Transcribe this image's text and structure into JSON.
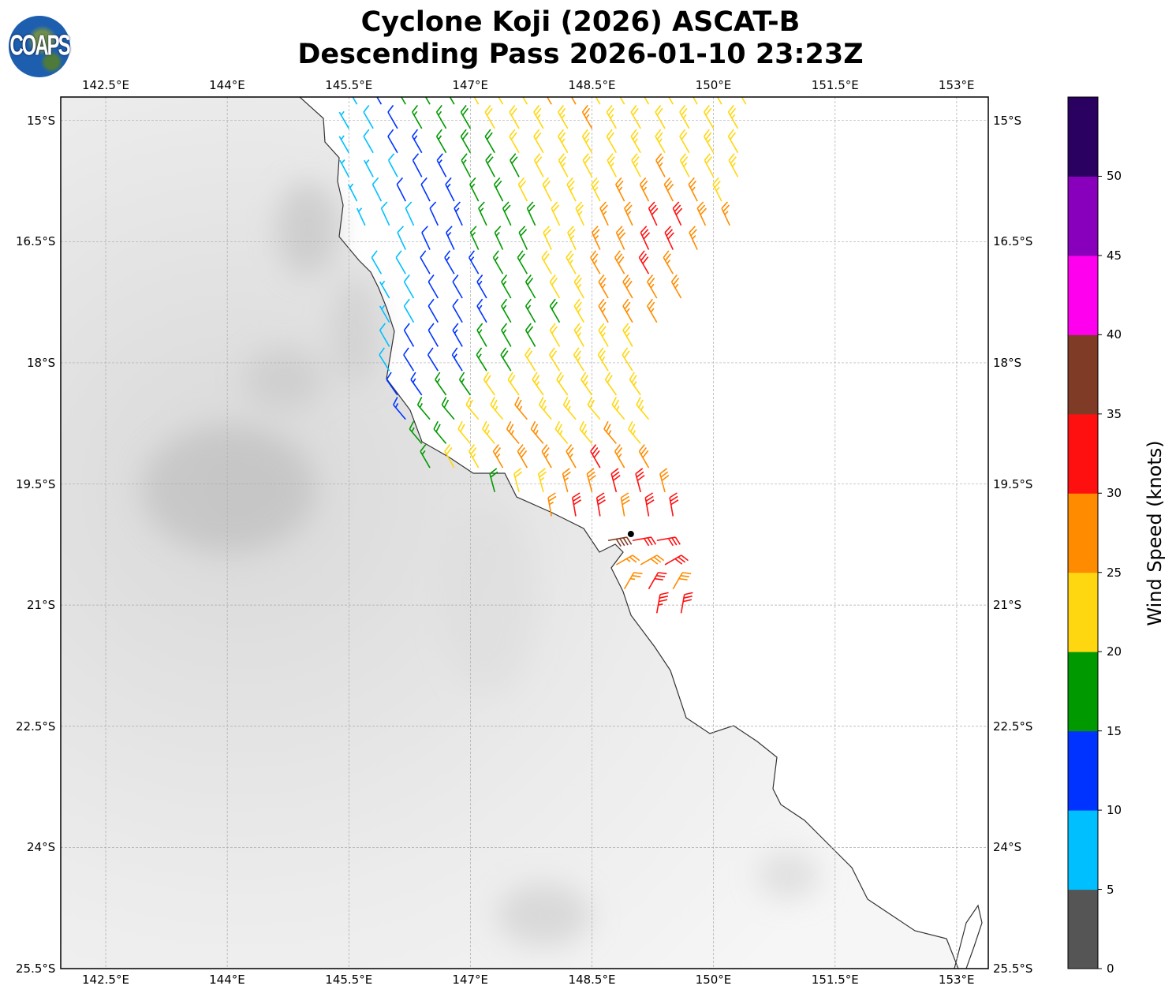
{
  "title_line1": "Cyclone Koji (2026) ASCAT-B",
  "title_line2": "Descending Pass 2026-01-10 23:23Z",
  "logo_text": "COAPS",
  "chart_data": {
    "type": "wind-barb-map",
    "lon_range": [
      141.945,
      153.39
    ],
    "lat_range_south": [
      14.71,
      25.5
    ],
    "lon_ticks": [
      142.5,
      144,
      145.5,
      147,
      148.5,
      150,
      151.5,
      153
    ],
    "lon_tick_labels": [
      "142.5°E",
      "144°E",
      "145.5°E",
      "147°E",
      "148.5°E",
      "150°E",
      "151.5°E",
      "153°E"
    ],
    "lat_ticks": [
      15,
      16.5,
      18,
      19.5,
      21,
      22.5,
      24,
      25.5
    ],
    "lat_tick_labels": [
      "15°S",
      "16.5°S",
      "18°S",
      "19.5°S",
      "21°S",
      "22.5°S",
      "24°S",
      "25.5°S"
    ],
    "grid": true,
    "storm_center": {
      "lon": 148.98,
      "lat_south": 20.12
    },
    "barb_spacing_deg": 0.3,
    "barb_rows": [
      {
        "lat": 14.8,
        "lon0": 145.6,
        "dir": 330,
        "speeds": [
          8,
          12,
          16,
          17,
          18,
          21,
          22,
          23,
          26,
          27,
          22,
          22,
          23,
          22,
          22,
          23,
          22
        ]
      },
      {
        "lat": 15.1,
        "lon0": 145.5,
        "dir": 330,
        "speeds": [
          7,
          9,
          12,
          16,
          17,
          18,
          21,
          22,
          23,
          24,
          26,
          23,
          22,
          22,
          23,
          22,
          23
        ]
      },
      {
        "lat": 15.4,
        "lon0": 145.5,
        "dir": 330,
        "speeds": [
          6,
          8,
          11,
          13,
          17,
          18,
          18,
          21,
          22,
          23,
          24,
          22,
          23,
          24,
          22,
          23,
          22
        ]
      },
      {
        "lat": 15.7,
        "lon0": 145.5,
        "dir": 332,
        "speeds": [
          6,
          7,
          9,
          12,
          14,
          17,
          18,
          19,
          22,
          23,
          22,
          23,
          24,
          26,
          23,
          22,
          24
        ]
      },
      {
        "lat": 16.0,
        "lon0": 145.6,
        "dir": 333,
        "speeds": [
          6,
          8,
          10,
          12,
          14,
          17,
          18,
          21,
          22,
          23,
          24,
          26,
          27,
          28,
          27,
          24
        ]
      },
      {
        "lat": 16.3,
        "lon0": 145.7,
        "dir": 335,
        "speeds": [
          7,
          8,
          9,
          12,
          13,
          16,
          18,
          19,
          22,
          23,
          26,
          27,
          31,
          32,
          28,
          26
        ]
      },
      {
        "lat": 16.6,
        "lon0": 146.2,
        "dir": 335,
        "speeds": [
          9,
          11,
          13,
          16,
          17,
          18,
          22,
          24,
          27,
          28,
          32,
          31,
          27
        ]
      },
      {
        "lat": 16.9,
        "lon0": 145.9,
        "dir": 330,
        "speeds": [
          8,
          9,
          11,
          13,
          14,
          16,
          18,
          21,
          23,
          27,
          28,
          31,
          27
        ]
      },
      {
        "lat": 17.2,
        "lon0": 146.0,
        "dir": 330,
        "speeds": [
          7,
          9,
          11,
          12,
          14,
          16,
          18,
          22,
          24,
          27,
          28,
          27,
          26
        ]
      },
      {
        "lat": 17.5,
        "lon0": 146.0,
        "dir": 330,
        "speeds": [
          7,
          9,
          11,
          12,
          13,
          16,
          17,
          19,
          23,
          26,
          27,
          26
        ]
      },
      {
        "lat": 17.8,
        "lon0": 146.0,
        "dir": 330,
        "speeds": [
          8,
          11,
          12,
          14,
          16,
          17,
          18,
          21,
          23,
          24,
          23
        ]
      },
      {
        "lat": 18.1,
        "lon0": 146.0,
        "dir": 328,
        "speeds": [
          9,
          11,
          12,
          14,
          16,
          18,
          21,
          22,
          23,
          23,
          22
        ]
      },
      {
        "lat": 18.4,
        "lon0": 146.1,
        "dir": 325,
        "speeds": [
          11,
          13,
          16,
          17,
          21,
          22,
          23,
          22,
          24,
          22,
          23
        ]
      },
      {
        "lat": 18.7,
        "lon0": 146.2,
        "dir": 320,
        "speeds": [
          14,
          17,
          18,
          21,
          23,
          26,
          24,
          23,
          22,
          24,
          23
        ]
      },
      {
        "lat": 19.0,
        "lon0": 146.4,
        "dir": 320,
        "speeds": [
          17,
          18,
          21,
          23,
          26,
          27,
          24,
          23,
          27,
          24
        ]
      },
      {
        "lat": 19.3,
        "lon0": 146.5,
        "dir": 330,
        "speeds": [
          17,
          21,
          23,
          27,
          29,
          26,
          27,
          31,
          27,
          28
        ]
      },
      {
        "lat": 19.6,
        "lon0": 147.3,
        "dir": 345,
        "speeds": [
          18,
          22,
          24,
          26,
          28,
          32,
          31,
          29
        ]
      },
      {
        "lat": 19.9,
        "lon0": 148.0,
        "dir": 350,
        "speeds": [
          27,
          31,
          32,
          29,
          31,
          32
        ]
      },
      {
        "lat": 20.2,
        "lon0": 148.7,
        "dir": 80,
        "speeds": [
          38,
          32,
          31
        ]
      },
      {
        "lat": 20.5,
        "lon0": 148.8,
        "dir": 60,
        "speeds": [
          27,
          28,
          31
        ]
      },
      {
        "lat": 20.8,
        "lon0": 148.9,
        "dir": 30,
        "speeds": [
          27,
          31,
          28
        ]
      },
      {
        "lat": 21.1,
        "lon0": 149.3,
        "dir": 10,
        "speeds": [
          33,
          32
        ]
      }
    ],
    "colorbar": {
      "label": "Wind Speed (knots)",
      "bounds": [
        0,
        5,
        10,
        15,
        20,
        25,
        30,
        35,
        40,
        45,
        50,
        55
      ],
      "tick_labels": [
        "0",
        "5",
        "10",
        "15",
        "20",
        "25",
        "30",
        "35",
        "40",
        "45",
        "50"
      ],
      "colors": [
        "#555555",
        "#00bfff",
        "#0033ff",
        "#009900",
        "#ffd710",
        "#ff8c00",
        "#ff1010",
        "#7f3b26",
        "#ff00ee",
        "#8800bb",
        "#2a0060"
      ]
    }
  }
}
